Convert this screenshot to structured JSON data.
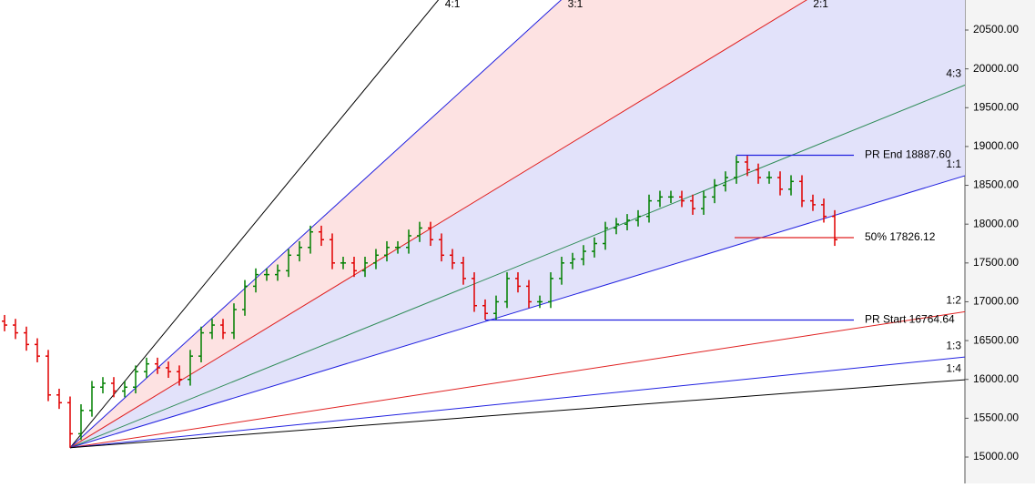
{
  "chart_data": {
    "type": "ohlc",
    "open": [
      16750,
      16700,
      16600,
      16450,
      16300,
      15800,
      15700,
      15300,
      15600,
      15900,
      15950,
      15850,
      15900,
      16100,
      16200,
      16150,
      16100,
      16000,
      16300,
      16600,
      16700,
      16600,
      16900,
      17200,
      17350,
      17350,
      17400,
      17600,
      17700,
      17900,
      17800,
      17500,
      17500,
      17400,
      17500,
      17600,
      17700,
      17700,
      17850,
      17950,
      17800,
      17600,
      17500,
      17300,
      16950,
      16850,
      17000,
      17300,
      17200,
      17000,
      17000,
      17300,
      17500,
      17550,
      17650,
      17750,
      17950,
      18000,
      18050,
      18100,
      18300,
      18350,
      18350,
      18300,
      18200,
      18350,
      18500,
      18600,
      18800,
      18700,
      18600,
      18600,
      18450,
      18550,
      18300,
      18250,
      18100
    ],
    "high": [
      16830,
      16780,
      16680,
      16530,
      16380,
      15880,
      15780,
      15680,
      15980,
      16030,
      16030,
      15980,
      16180,
      16280,
      16280,
      16230,
      16180,
      16380,
      16680,
      16780,
      16780,
      16980,
      17280,
      17430,
      17430,
      17480,
      17680,
      17780,
      17980,
      17980,
      17880,
      17580,
      17580,
      17580,
      17680,
      17780,
      17780,
      17930,
      18030,
      18030,
      17880,
      17680,
      17580,
      17380,
      17030,
      17080,
      17380,
      17380,
      17280,
      17080,
      17380,
      17580,
      17630,
      17730,
      17830,
      18030,
      18080,
      18130,
      18180,
      18380,
      18430,
      18430,
      18430,
      18380,
      18430,
      18580,
      18680,
      18880,
      18880,
      18780,
      18680,
      18680,
      18630,
      18630,
      18380,
      18330,
      18180
    ],
    "low": [
      16620,
      16520,
      16370,
      16220,
      15720,
      15620,
      15120,
      15220,
      15520,
      15820,
      15770,
      15770,
      15820,
      16020,
      16070,
      16020,
      15920,
      15920,
      16220,
      16520,
      16520,
      16520,
      16820,
      17120,
      17270,
      17270,
      17320,
      17520,
      17620,
      17720,
      17420,
      17420,
      17320,
      17320,
      17420,
      17520,
      17620,
      17620,
      17770,
      17720,
      17520,
      17420,
      17220,
      16870,
      16770,
      16770,
      16920,
      17120,
      16920,
      16920,
      16920,
      17220,
      17420,
      17470,
      17570,
      17670,
      17870,
      17920,
      17970,
      18020,
      18220,
      18270,
      18220,
      18120,
      18120,
      18270,
      18420,
      18520,
      18620,
      18520,
      18520,
      18370,
      18370,
      18220,
      18170,
      18020,
      17720
    ],
    "close": [
      16700,
      16600,
      16450,
      16300,
      15800,
      15700,
      15300,
      15600,
      15900,
      15950,
      15850,
      15900,
      16100,
      16200,
      16150,
      16100,
      16000,
      16300,
      16600,
      16700,
      16600,
      16900,
      17200,
      17350,
      17350,
      17400,
      17600,
      17700,
      17900,
      17800,
      17500,
      17500,
      17400,
      17500,
      17600,
      17700,
      17700,
      17850,
      17950,
      17800,
      17600,
      17500,
      17300,
      16950,
      16850,
      17000,
      17300,
      17200,
      17000,
      17000,
      17300,
      17500,
      17550,
      17650,
      17750,
      17950,
      18000,
      18050,
      18100,
      18300,
      18350,
      18350,
      18300,
      18200,
      18350,
      18500,
      18600,
      18800,
      18700,
      18600,
      18600,
      18450,
      18550,
      18300,
      18250,
      18100,
      17800
    ],
    "up_color": "#008000",
    "down_color": "#e00000",
    "ylim": [
      14660,
      20887
    ],
    "yticks": [
      {
        "value": 15000,
        "label": "15000.00"
      },
      {
        "value": 15500,
        "label": "15500.00"
      },
      {
        "value": 16000,
        "label": "16000.00"
      },
      {
        "value": 16500,
        "label": "16500.00"
      },
      {
        "value": 17000,
        "label": "17000.00"
      },
      {
        "value": 17500,
        "label": "17500.00"
      },
      {
        "value": 18000,
        "label": "18000.00"
      },
      {
        "value": 18500,
        "label": "18500.00"
      },
      {
        "value": 19000,
        "label": "19000.00"
      },
      {
        "value": 19500,
        "label": "19500.00"
      },
      {
        "value": 20000,
        "label": "20000.00"
      },
      {
        "value": 20500,
        "label": "20500.00"
      }
    ],
    "fan_lines": [
      {
        "label": "4:1",
        "color": "#000000"
      },
      {
        "label": "3:1",
        "color": "#2020e0",
        "fill": "#fde2e2"
      },
      {
        "label": "2:1",
        "color": "#e02020",
        "fill": "#e2e2fa"
      },
      {
        "label": "4:3",
        "color": "#2e8b57",
        "fill": "#e2e2fa"
      },
      {
        "label": "1:1",
        "color": "#2020e0"
      },
      {
        "label": "1:2",
        "color": "#e02020"
      },
      {
        "label": "1:3",
        "color": "#2020e0"
      },
      {
        "label": "1:4",
        "color": "#000000"
      }
    ],
    "levels": [
      {
        "label": "PR End 18887.60",
        "value": 18887.6,
        "color": "#2020e0"
      },
      {
        "label": "50% 17826.12",
        "value": 17826.12,
        "color": "#e02020"
      },
      {
        "label": "PR Start 16764.64",
        "value": 16764.64,
        "color": "#2020e0"
      }
    ]
  }
}
